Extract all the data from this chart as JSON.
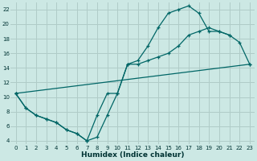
{
  "bg_color": "#cce8e4",
  "grid_color": "#b0ccc8",
  "line_color": "#006666",
  "xlabel": "Humidex (Indice chaleur)",
  "xlim": [
    -0.5,
    23.5
  ],
  "ylim": [
    3.5,
    23.0
  ],
  "xticks": [
    0,
    1,
    2,
    3,
    4,
    5,
    6,
    7,
    8,
    9,
    10,
    11,
    12,
    13,
    14,
    15,
    16,
    17,
    18,
    19,
    20,
    21,
    22,
    23
  ],
  "yticks": [
    4,
    6,
    8,
    10,
    12,
    14,
    16,
    18,
    20,
    22
  ],
  "line1_x": [
    0,
    1,
    2,
    3,
    4,
    5,
    6,
    7,
    8,
    9,
    10,
    11,
    12,
    13,
    14,
    15,
    16,
    17,
    18,
    19,
    20,
    21
  ],
  "line1_y": [
    10.5,
    8.5,
    7.5,
    7.0,
    6.5,
    5.5,
    5.0,
    4.0,
    4.5,
    7.5,
    10.5,
    14.5,
    15.0,
    17.0,
    19.5,
    21.5,
    22.0,
    22.5,
    21.5,
    19.0,
    19.0,
    18.5
  ],
  "line2_x": [
    0,
    1,
    2,
    3,
    4,
    5,
    6,
    7,
    8,
    9,
    10,
    11,
    12,
    13,
    14,
    15,
    16,
    17,
    18,
    19,
    20,
    21,
    22,
    23
  ],
  "line2_y": [
    10.5,
    8.5,
    7.5,
    7.0,
    6.5,
    5.5,
    5.0,
    4.0,
    7.5,
    10.5,
    10.5,
    14.5,
    14.5,
    15.0,
    15.5,
    16.0,
    17.0,
    18.5,
    19.0,
    19.5,
    19.0,
    18.5,
    17.5,
    14.5
  ],
  "line3_x": [
    0,
    23
  ],
  "line3_y": [
    10.5,
    14.5
  ],
  "tick_fontsize": 5.0,
  "xlabel_fontsize": 6.5
}
